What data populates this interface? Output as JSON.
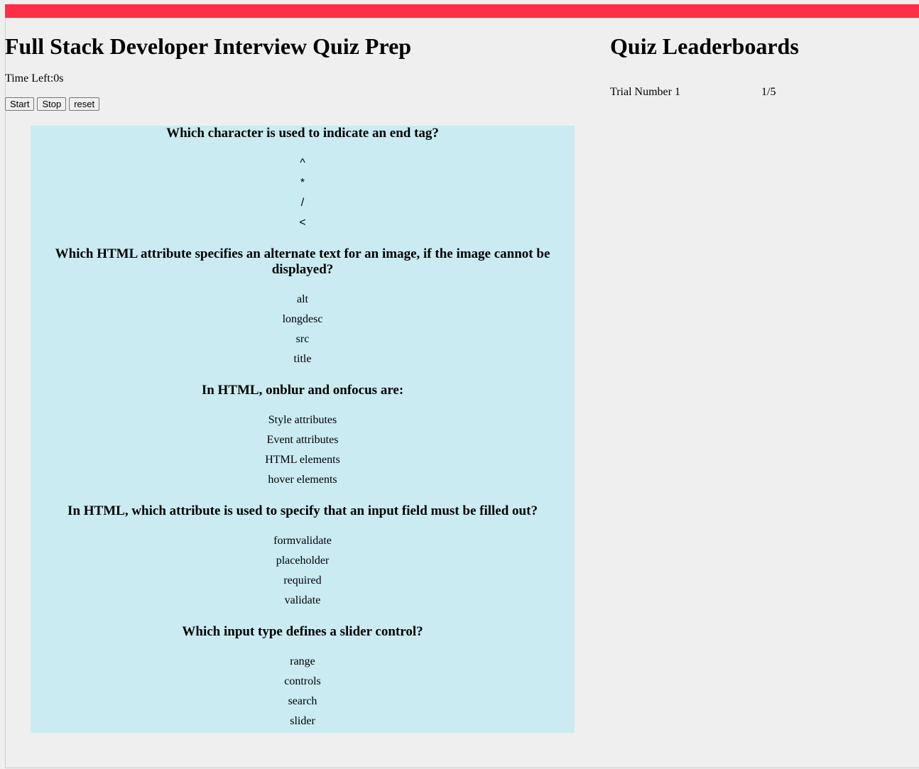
{
  "header": {
    "title": "Full Stack Developer Interview Quiz Prep",
    "time_left": "Time Left:0s",
    "colors": {
      "topbar": "#ff2e47",
      "quiz_bg": "#caebf2",
      "page_bg": "#efefef"
    }
  },
  "controls": {
    "start_label": "Start",
    "stop_label": "Stop",
    "reset_label": "reset"
  },
  "quiz": {
    "questions": [
      {
        "text": "Which character is used to indicate an end tag?",
        "answers": [
          "^",
          "*",
          "/",
          "<"
        ]
      },
      {
        "text": "Which HTML attribute specifies an alternate text for an image, if the image cannot be displayed?",
        "answers": [
          "alt",
          "longdesc",
          "src",
          "title"
        ]
      },
      {
        "text": "In HTML, onblur and onfocus are:",
        "answers": [
          "Style attributes",
          "Event attributes",
          "HTML elements",
          "hover elements"
        ]
      },
      {
        "text": "In HTML, which attribute is used to specify that an input field must be filled out?",
        "answers": [
          "formvalidate",
          "placeholder",
          "required",
          "validate"
        ]
      },
      {
        "text": "Which input type defines a slider control?",
        "answers": [
          "range",
          "controls",
          "search",
          "slider"
        ]
      }
    ]
  },
  "leaderboard": {
    "title": "Quiz Leaderboards",
    "entries": [
      {
        "trial": "Trial Number 1",
        "score": "1/5"
      }
    ]
  }
}
